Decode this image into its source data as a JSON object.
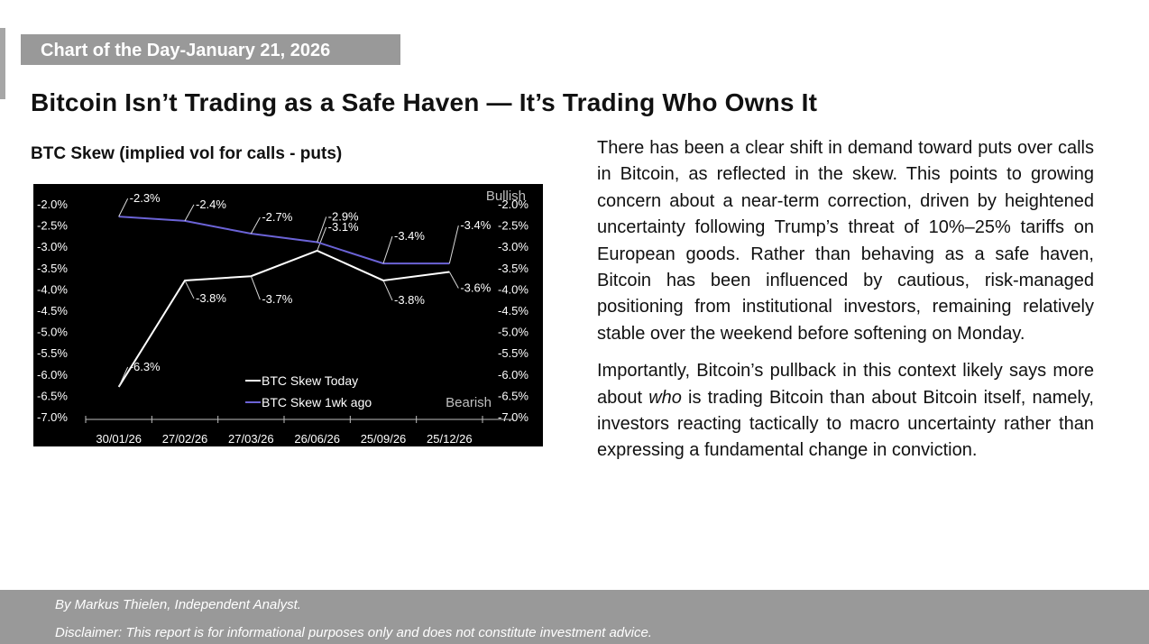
{
  "banner": {
    "date_label": "Chart of the Day-January 21, 2026"
  },
  "page_title": "Bitcoin Isn’t Trading as a Safe Haven — It’s Trading Who Owns It",
  "chart_heading": "BTC Skew (implied vol for calls - puts)",
  "chart_data": {
    "type": "line",
    "title": "BTC Skew (implied vol for calls - puts)",
    "categories": [
      "30/01/26",
      "27/02/26",
      "27/03/26",
      "26/06/26",
      "25/09/26",
      "25/12/26"
    ],
    "series": [
      {
        "name": "BTC Skew Today",
        "color": "#ffffff",
        "values": [
          -6.3,
          -3.8,
          -3.7,
          -3.1,
          -3.8,
          -3.6
        ],
        "labels": [
          "-6.3%",
          "-3.8%",
          "-3.7%",
          "-3.1%",
          "-3.8%",
          "-3.6%"
        ]
      },
      {
        "name": "BTC Skew 1wk ago",
        "color": "#6b63d6",
        "values": [
          -2.3,
          -2.4,
          -2.7,
          -2.9,
          -3.4,
          -3.4
        ],
        "labels": [
          "-2.3%",
          "-2.4%",
          "-2.7%",
          "-2.9%",
          "-3.4%",
          "-3.4%"
        ]
      }
    ],
    "ylim": [
      -7.0,
      -2.0
    ],
    "yticks": [
      "-2.0%",
      "-2.5%",
      "-3.0%",
      "-3.5%",
      "-4.0%",
      "-4.5%",
      "-5.0%",
      "-5.5%",
      "-6.0%",
      "-6.5%",
      "-7.0%"
    ],
    "yaxis_both_sides": true,
    "annotations": {
      "top": "Bullish",
      "bottom": "Bearish"
    },
    "legend_placement": "bottom-center",
    "background": "#000000",
    "text_color": "#ffffff"
  },
  "body": {
    "p1": "There has been a clear shift in demand toward puts over calls in Bitcoin, as reflected in the skew. This points to growing concern about a near-term correction, driven by heightened uncertainty following Trump’s threat of 10%–25% tariffs on European goods. Rather than behaving as a safe haven, Bitcoin has been influenced by cautious, risk-managed positioning from institutional investors, remaining relatively stable over the weekend before softening on Monday.",
    "p2_before": "Importantly, Bitcoin’s pullback in this context likely says more about ",
    "p2_emph": "who",
    "p2_after": " is trading Bitcoin than about Bitcoin itself, namely, investors reacting tactically to macro uncertainty rather than expressing a fundamental change in conviction."
  },
  "footer": {
    "author": "By Markus Thielen, Independent Analyst.",
    "disclaimer": "Disclaimer: This report is for informational purposes only and does not constitute investment advice."
  }
}
